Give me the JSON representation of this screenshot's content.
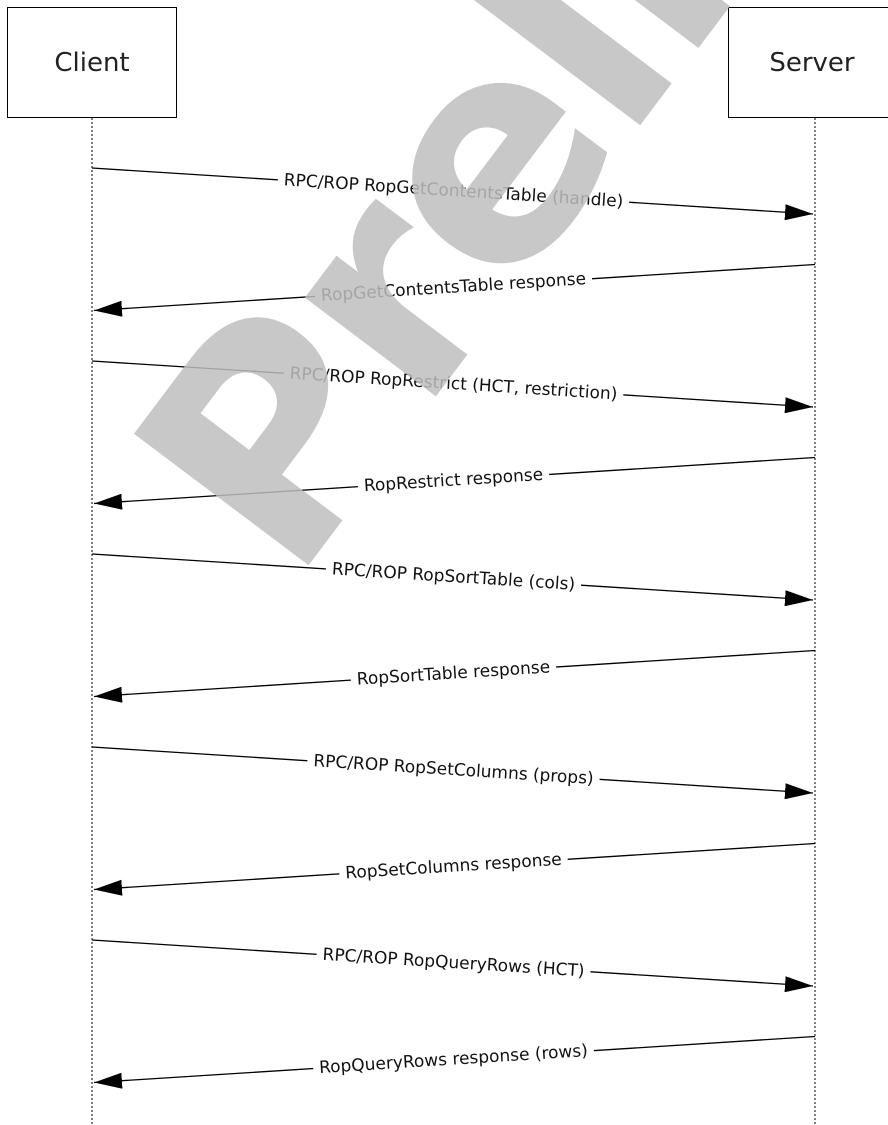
{
  "actors": {
    "client": "Client",
    "server": "Server"
  },
  "messages": [
    {
      "label": "RPC/ROP RopGetContentsTable (handle)",
      "direction": "client-to-server"
    },
    {
      "label": "RopGetContentsTable response",
      "direction": "server-to-client"
    },
    {
      "label": "RPC/ROP RopRestrict (HCT, restriction)",
      "direction": "client-to-server"
    },
    {
      "label": "RopRestrict response",
      "direction": "server-to-client"
    },
    {
      "label": "RPC/ROP RopSortTable (cols)",
      "direction": "client-to-server"
    },
    {
      "label": "RopSortTable response",
      "direction": "server-to-client"
    },
    {
      "label": "RPC/ROP RopSetColumns (props)",
      "direction": "client-to-server"
    },
    {
      "label": "RopSetColumns response",
      "direction": "server-to-client"
    },
    {
      "label": "RPC/ROP RopQueryRows (HCT)",
      "direction": "client-to-server"
    },
    {
      "label": "RopQueryRows response (rows)",
      "direction": "server-to-client"
    }
  ],
  "watermark": "Preliminary",
  "colors": {
    "line": "#000000",
    "watermark": "#bebebe"
  }
}
